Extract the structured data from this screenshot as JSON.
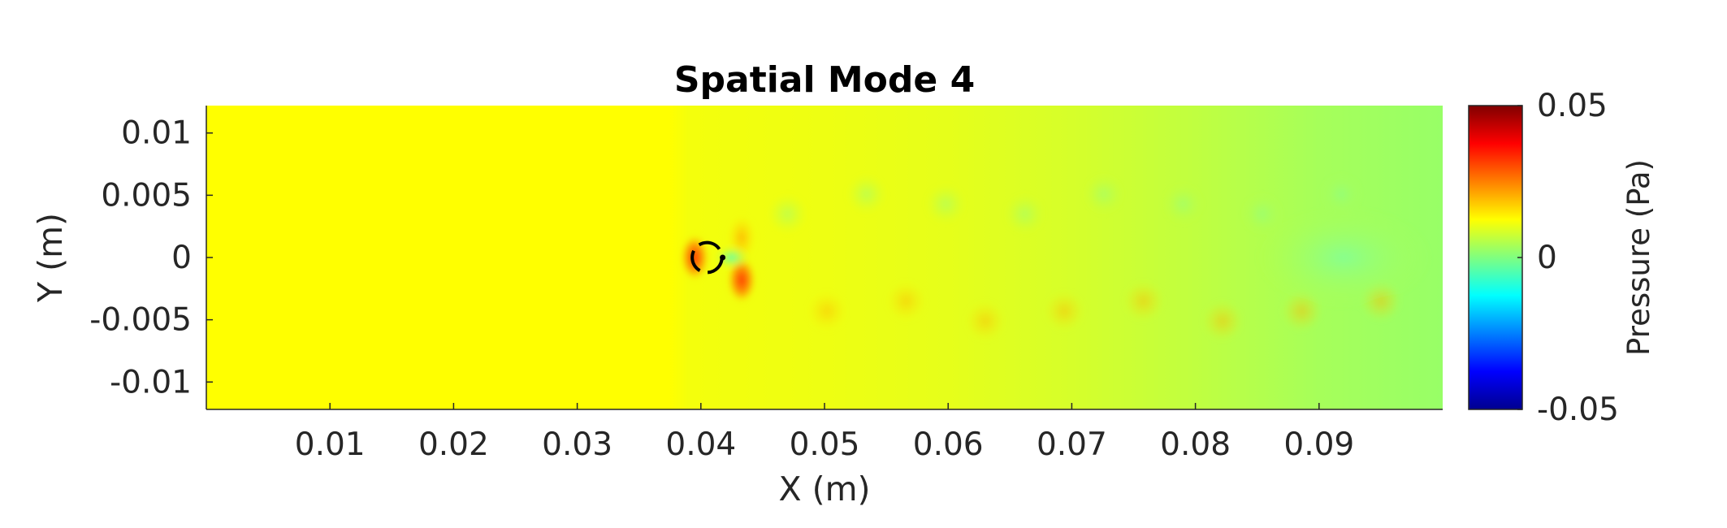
{
  "chart_data": {
    "type": "heatmap",
    "title": "Spatial Mode 4",
    "xlabel": "X (m)",
    "ylabel": "Y (m)",
    "xlim": [
      0,
      0.1
    ],
    "ylim": [
      -0.0122,
      0.0122
    ],
    "x_ticks": [
      "0.01",
      "0.02",
      "0.03",
      "0.04",
      "0.05",
      "0.06",
      "0.07",
      "0.08",
      "0.09"
    ],
    "x_tick_values": [
      0.01,
      0.02,
      0.03,
      0.04,
      0.05,
      0.06,
      0.07,
      0.08,
      0.09
    ],
    "y_ticks": [
      "0.01",
      "0.005",
      "0",
      "-0.005",
      "-0.01"
    ],
    "y_tick_values": [
      0.01,
      0.005,
      0,
      -0.005,
      -0.01
    ],
    "colorbar": {
      "label": "Pressure (Pa)",
      "colormap": "jet",
      "range": [
        -0.05,
        0.05
      ],
      "ticks": [
        "0.05",
        "0",
        "-0.05"
      ],
      "tick_values": [
        0.05,
        0,
        -0.05
      ]
    },
    "field_description_regions": [
      {
        "x_range": [
          0.0,
          0.038
        ],
        "pressure": 0.01
      },
      {
        "x_range": [
          0.038,
          0.05
        ],
        "pressure": 0.009
      },
      {
        "x_range": [
          0.05,
          0.065
        ],
        "pressure": 0.006
      },
      {
        "x_range": [
          0.065,
          0.08
        ],
        "pressure": 0.004
      },
      {
        "x_range": [
          0.08,
          0.1
        ],
        "pressure": 0.002
      }
    ],
    "features": [
      {
        "kind": "cylinder",
        "x": 0.0405,
        "y": 0.0,
        "r": 0.0012
      },
      {
        "kind": "peak",
        "x": 0.0395,
        "y": 0.0,
        "pressure": 0.05
      },
      {
        "kind": "peak",
        "x": 0.0433,
        "y": -0.0018,
        "pressure": 0.035
      },
      {
        "kind": "peak",
        "x": 0.0433,
        "y": 0.0016,
        "pressure": 0.02
      },
      {
        "kind": "trough",
        "x": 0.0425,
        "y": 0.0,
        "pressure": -0.01
      },
      {
        "kind": "trough",
        "x": 0.092,
        "y": 0.0,
        "pressure": -0.002
      }
    ],
    "grid": false,
    "colors": {
      "background": "#ffffff",
      "axis": "#262626",
      "title": "#000000"
    }
  }
}
